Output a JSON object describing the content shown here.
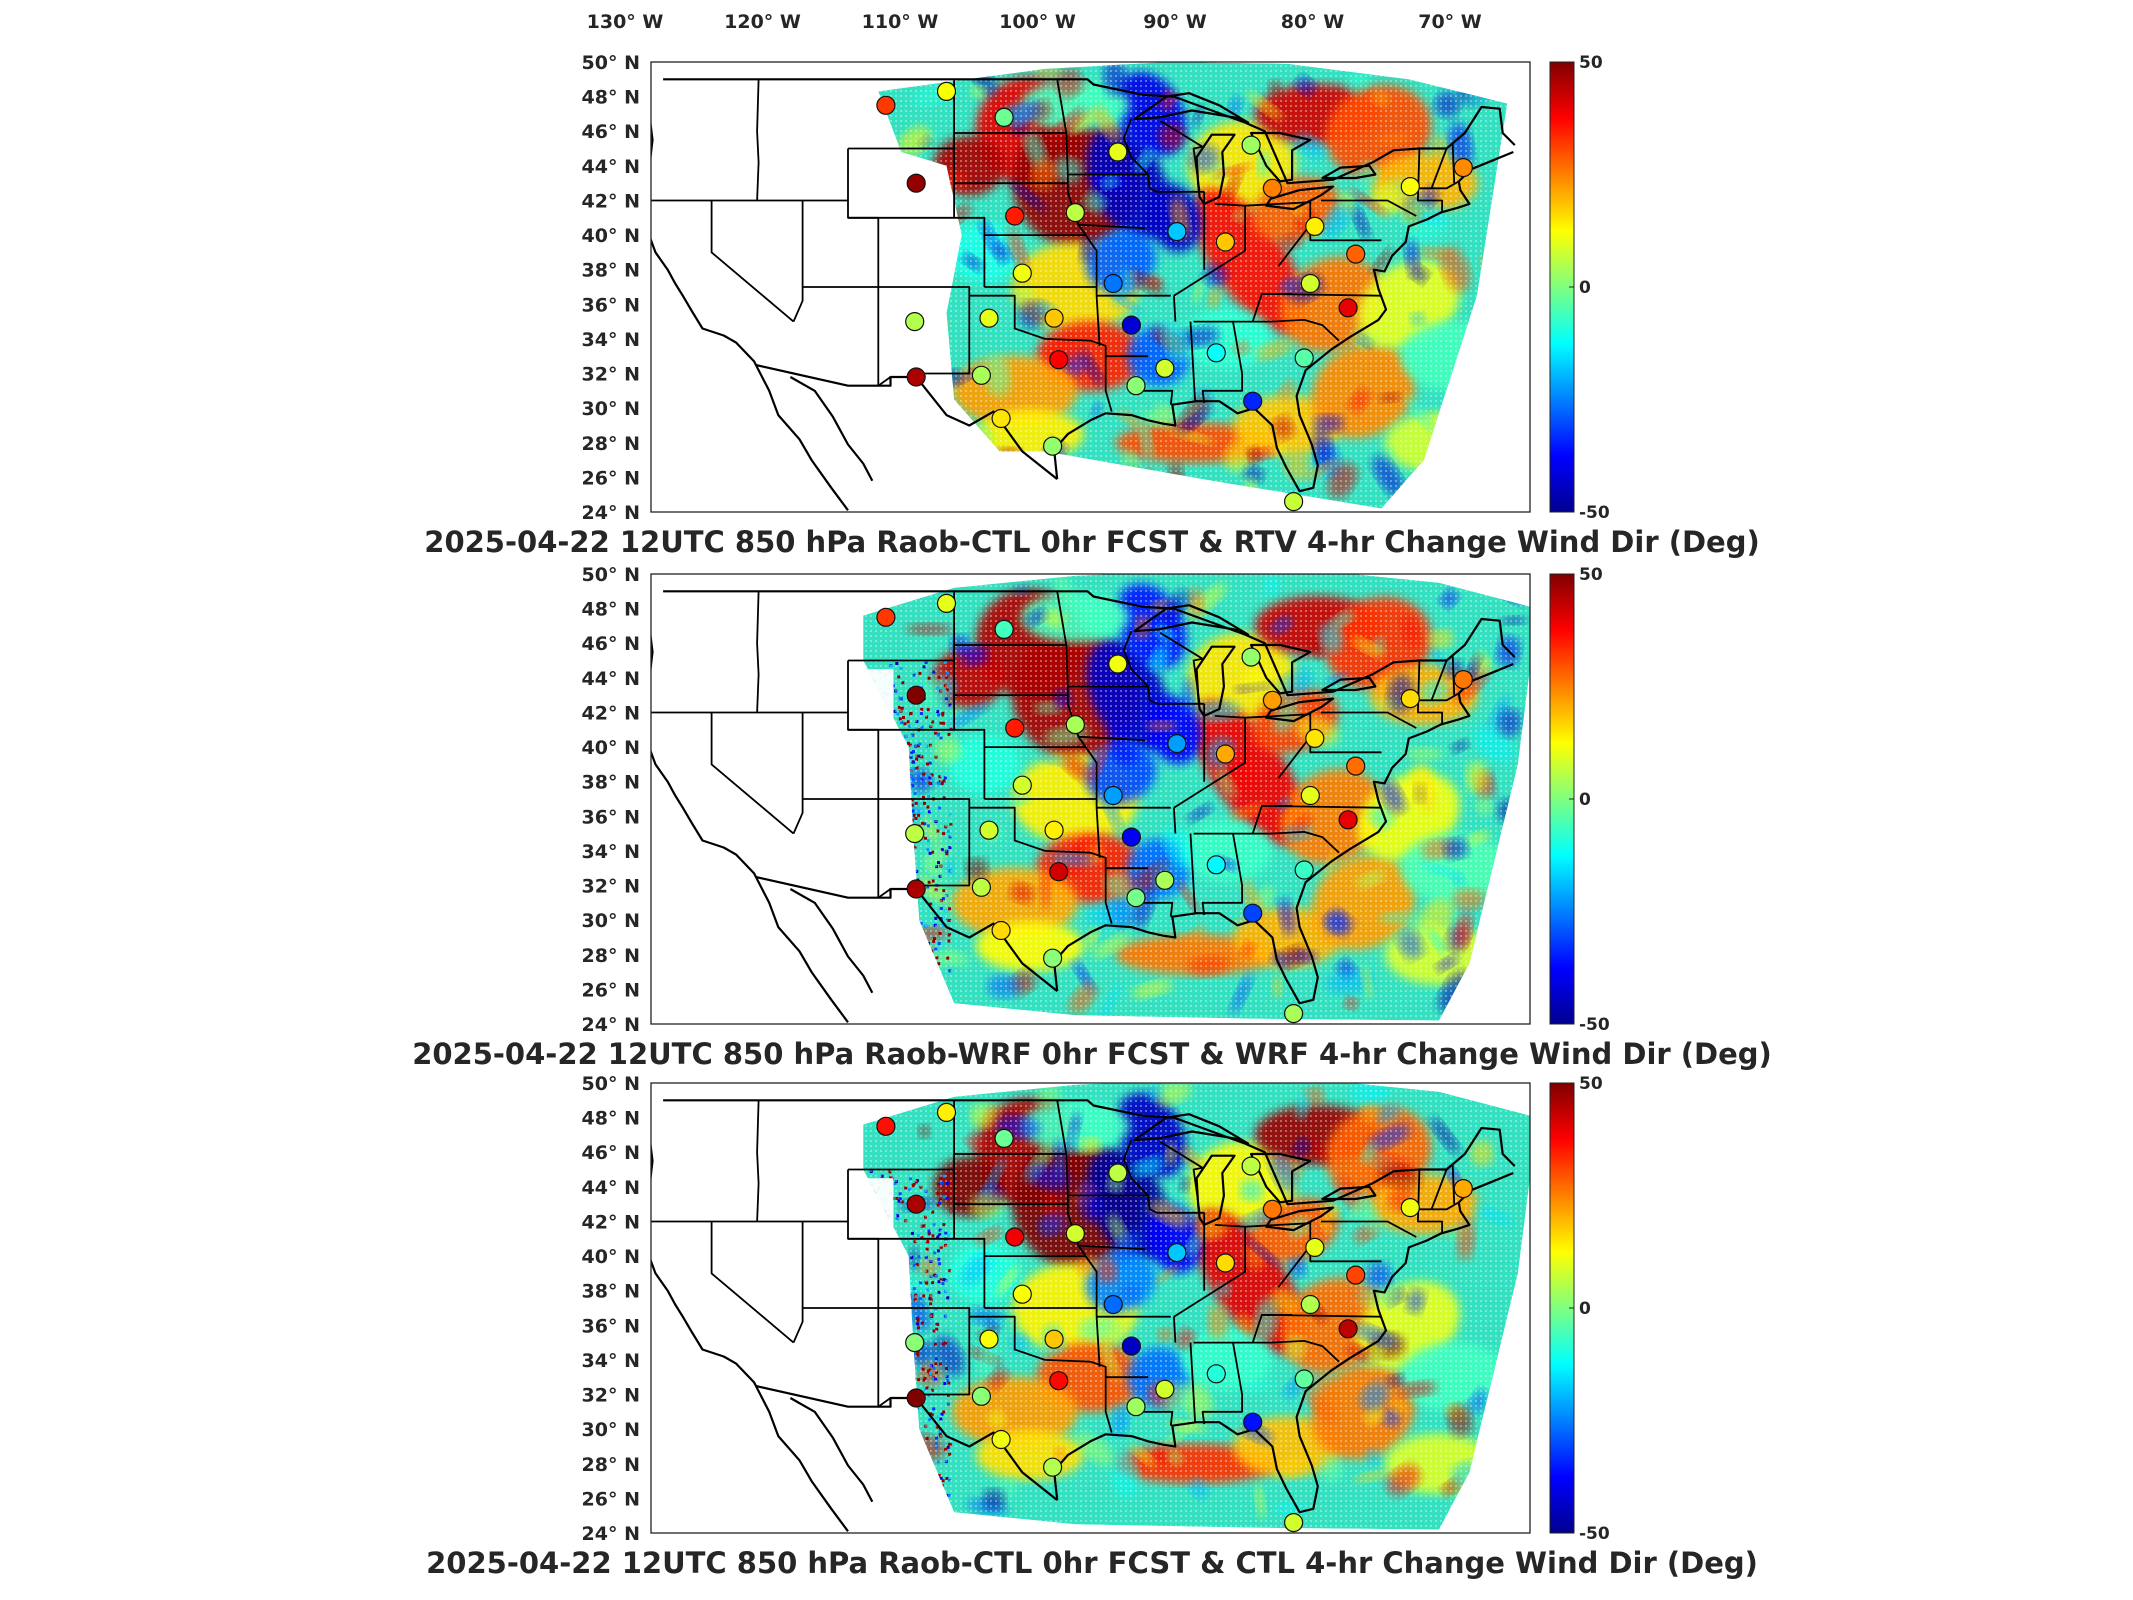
{
  "top_axis": {
    "lon_labels": [
      "130° W",
      "120° W",
      "110° W",
      "100° W",
      "90° W",
      "80° W",
      "70° W"
    ]
  },
  "lat_labels": [
    "50° N",
    "48° N",
    "46° N",
    "44° N",
    "42° N",
    "40° N",
    "38° N",
    "36° N",
    "34° N",
    "32° N",
    "30° N",
    "28° N",
    "26° N",
    "24° N"
  ],
  "colorbar": {
    "max_label": "50",
    "mid_label": "0",
    "min_label": "-50",
    "range": [
      -50,
      50
    ],
    "colormap": "jet",
    "colors": [
      "#00008f",
      "#0000ff",
      "#0080ff",
      "#00ffff",
      "#80ff80",
      "#ffff00",
      "#ff8000",
      "#ff0000",
      "#800000"
    ]
  },
  "panels": [
    {
      "title": "2025-04-22 12UTC 850 hPa Raob-CTL 0hr FCST & RTV 4-hr Change Wind Dir (Deg)",
      "field": "RTV"
    },
    {
      "title": "2025-04-22 12UTC 850 hPa Raob-WRF 0hr FCST & WRF 4-hr Change Wind Dir (Deg)",
      "field": "WRF"
    },
    {
      "title": "2025-04-22 12UTC 850 hPa Raob-CTL 0hr FCST & CTL 4-hr Change Wind Dir (Deg)",
      "field": "CTL"
    }
  ],
  "map": {
    "extent_lon": [
      -124,
      -66
    ],
    "extent_lat": [
      24,
      50
    ]
  },
  "raob_stations": [
    {
      "lon": -108.5,
      "lat": 47.5,
      "value": 32
    },
    {
      "lon": -104.5,
      "lat": 48.3,
      "value": 12
    },
    {
      "lon": -100.7,
      "lat": 46.8,
      "value": -2
    },
    {
      "lon": -106.5,
      "lat": 43.0,
      "value": 48
    },
    {
      "lon": -93.2,
      "lat": 44.8,
      "value": 10
    },
    {
      "lon": -84.4,
      "lat": 45.2,
      "value": 3
    },
    {
      "lon": -83.0,
      "lat": 42.7,
      "value": 25
    },
    {
      "lon": -73.9,
      "lat": 42.8,
      "value": 12
    },
    {
      "lon": -70.4,
      "lat": 43.9,
      "value": 24
    },
    {
      "lon": -100.0,
      "lat": 41.1,
      "value": 35
    },
    {
      "lon": -96.0,
      "lat": 41.3,
      "value": 6
    },
    {
      "lon": -89.3,
      "lat": 40.2,
      "value": -18
    },
    {
      "lon": -86.1,
      "lat": 39.6,
      "value": 18
    },
    {
      "lon": -80.2,
      "lat": 40.5,
      "value": 14
    },
    {
      "lon": -77.5,
      "lat": 38.9,
      "value": 28
    },
    {
      "lon": -99.5,
      "lat": 37.8,
      "value": 11
    },
    {
      "lon": -93.5,
      "lat": 37.2,
      "value": -26
    },
    {
      "lon": -80.5,
      "lat": 37.2,
      "value": 8
    },
    {
      "lon": -78.0,
      "lat": 35.8,
      "value": 40
    },
    {
      "lon": -101.7,
      "lat": 35.2,
      "value": 10
    },
    {
      "lon": -97.4,
      "lat": 35.2,
      "value": 18
    },
    {
      "lon": -92.3,
      "lat": 34.8,
      "value": -42
    },
    {
      "lon": -106.6,
      "lat": 35.0,
      "value": 5
    },
    {
      "lon": -86.7,
      "lat": 33.2,
      "value": -12
    },
    {
      "lon": -80.9,
      "lat": 32.9,
      "value": -4
    },
    {
      "lon": -97.1,
      "lat": 32.8,
      "value": 38
    },
    {
      "lon": -102.2,
      "lat": 31.9,
      "value": 4
    },
    {
      "lon": -106.5,
      "lat": 31.8,
      "value": 46
    },
    {
      "lon": -92.0,
      "lat": 31.3,
      "value": 1
    },
    {
      "lon": -90.1,
      "lat": 32.3,
      "value": 8
    },
    {
      "lon": -84.3,
      "lat": 30.4,
      "value": -34
    },
    {
      "lon": -100.9,
      "lat": 29.4,
      "value": 15
    },
    {
      "lon": -97.5,
      "lat": 27.8,
      "value": 2
    },
    {
      "lon": -81.6,
      "lat": 24.6,
      "value": 7
    }
  ]
}
